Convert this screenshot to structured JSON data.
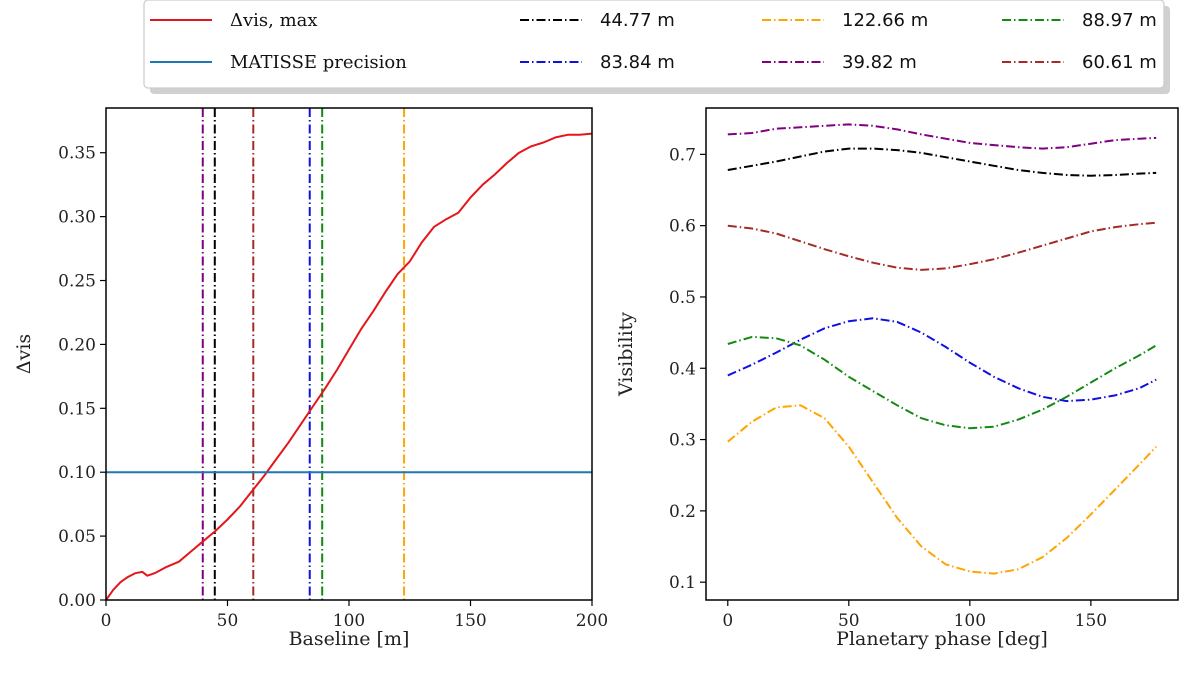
{
  "legend": {
    "entries": [
      {
        "key": "dvis_max",
        "label": "Δvis, max",
        "color": "#e3171b",
        "style": "solid"
      },
      {
        "key": "matisse",
        "label": "MATISSE precision",
        "color": "#1f77b4",
        "style": "solid"
      },
      {
        "key": "b4477",
        "label": "44.77 m",
        "color": "#000000",
        "style": "dashdot"
      },
      {
        "key": "b8384",
        "label": "83.84 m",
        "color": "#1010e0",
        "style": "dashdot"
      },
      {
        "key": "b12266",
        "label": "122.66 m",
        "color": "#ffa500",
        "style": "dashdot"
      },
      {
        "key": "b3982",
        "label": "39.82 m",
        "color": "#800080",
        "style": "dashdot"
      },
      {
        "key": "b8897",
        "label": "88.97 m",
        "color": "#138a13",
        "style": "dashdot"
      },
      {
        "key": "b6061",
        "label": "60.61 m",
        "color": "#a52a2a",
        "style": "dashdot"
      }
    ]
  },
  "chart_data": [
    {
      "type": "line",
      "id": "left",
      "xlabel": "Baseline [m]",
      "ylabel": "Δvis",
      "xlim": [
        0,
        200
      ],
      "ylim": [
        0,
        0.385
      ],
      "xticks": [
        0,
        50,
        100,
        150,
        200
      ],
      "yticks": [
        0,
        0.05,
        0.1,
        0.15,
        0.2,
        0.25,
        0.3,
        0.35
      ],
      "ytick_labels": [
        "0.00",
        "0.05",
        "0.10",
        "0.15",
        "0.20",
        "0.25",
        "0.30",
        "0.35"
      ],
      "series": [
        {
          "name": "Δvis, max",
          "color": "#e3171b",
          "x": [
            0,
            3,
            6,
            9,
            12,
            15,
            17,
            20,
            25,
            30,
            35,
            40,
            45,
            50,
            55,
            60,
            65,
            70,
            75,
            80,
            85,
            90,
            95,
            100,
            105,
            110,
            115,
            120,
            125,
            130,
            135,
            140,
            145,
            150,
            155,
            160,
            165,
            170,
            175,
            180,
            185,
            190,
            195,
            200
          ],
          "y": [
            0.0,
            0.008,
            0.014,
            0.018,
            0.021,
            0.022,
            0.019,
            0.021,
            0.026,
            0.03,
            0.038,
            0.046,
            0.054,
            0.063,
            0.073,
            0.085,
            0.097,
            0.11,
            0.123,
            0.137,
            0.151,
            0.165,
            0.18,
            0.196,
            0.212,
            0.226,
            0.241,
            0.255,
            0.265,
            0.28,
            0.292,
            0.298,
            0.303,
            0.315,
            0.325,
            0.333,
            0.342,
            0.35,
            0.355,
            0.358,
            0.362,
            0.364,
            0.364,
            0.365
          ]
        },
        {
          "name": "MATISSE precision",
          "color": "#1f77b4",
          "x": [
            0,
            200
          ],
          "y": [
            0.1,
            0.1
          ]
        }
      ],
      "vlines": [
        {
          "x": 39.82,
          "color": "#800080"
        },
        {
          "x": 44.77,
          "color": "#000000"
        },
        {
          "x": 60.61,
          "color": "#a52a2a"
        },
        {
          "x": 83.84,
          "color": "#1010e0"
        },
        {
          "x": 88.97,
          "color": "#138a13"
        },
        {
          "x": 122.66,
          "color": "#ffa500"
        }
      ]
    },
    {
      "type": "line",
      "id": "right",
      "xlabel": "Planetary phase [deg]",
      "ylabel": "Visibility",
      "xlim": [
        -9,
        186
      ],
      "ylim": [
        0.075,
        0.765
      ],
      "xticks": [
        0,
        50,
        100,
        150
      ],
      "yticks": [
        0.1,
        0.2,
        0.3,
        0.4,
        0.5,
        0.6,
        0.7
      ],
      "ytick_labels": [
        "0.1",
        "0.2",
        "0.3",
        "0.4",
        "0.5",
        "0.6",
        "0.7"
      ],
      "series": [
        {
          "name": "39.82 m",
          "color": "#800080",
          "x": [
            0,
            10,
            20,
            30,
            40,
            50,
            60,
            70,
            80,
            90,
            100,
            110,
            120,
            130,
            140,
            150,
            160,
            170,
            177
          ],
          "y": [
            0.728,
            0.73,
            0.736,
            0.738,
            0.74,
            0.742,
            0.74,
            0.735,
            0.728,
            0.722,
            0.716,
            0.713,
            0.71,
            0.708,
            0.71,
            0.715,
            0.72,
            0.722,
            0.723
          ]
        },
        {
          "name": "44.77 m",
          "color": "#000000",
          "x": [
            0,
            10,
            20,
            30,
            40,
            50,
            60,
            70,
            80,
            90,
            100,
            110,
            120,
            130,
            140,
            150,
            160,
            170,
            177
          ],
          "y": [
            0.678,
            0.684,
            0.69,
            0.697,
            0.704,
            0.708,
            0.708,
            0.706,
            0.702,
            0.696,
            0.69,
            0.684,
            0.678,
            0.674,
            0.671,
            0.67,
            0.671,
            0.673,
            0.674
          ]
        },
        {
          "name": "60.61 m",
          "color": "#a52a2a",
          "x": [
            0,
            10,
            20,
            30,
            40,
            50,
            60,
            70,
            80,
            90,
            100,
            110,
            120,
            130,
            140,
            150,
            160,
            170,
            177
          ],
          "y": [
            0.6,
            0.596,
            0.589,
            0.578,
            0.567,
            0.557,
            0.548,
            0.541,
            0.538,
            0.54,
            0.546,
            0.553,
            0.562,
            0.572,
            0.582,
            0.592,
            0.598,
            0.602,
            0.604
          ]
        },
        {
          "name": "83.84 m",
          "color": "#1010e0",
          "x": [
            0,
            10,
            20,
            30,
            40,
            50,
            60,
            70,
            80,
            90,
            100,
            110,
            120,
            130,
            140,
            150,
            160,
            170,
            177
          ],
          "y": [
            0.39,
            0.405,
            0.422,
            0.44,
            0.456,
            0.466,
            0.47,
            0.465,
            0.45,
            0.43,
            0.408,
            0.388,
            0.372,
            0.36,
            0.354,
            0.356,
            0.362,
            0.372,
            0.384
          ]
        },
        {
          "name": "88.97 m",
          "color": "#138a13",
          "x": [
            0,
            10,
            20,
            30,
            40,
            50,
            60,
            70,
            80,
            90,
            100,
            110,
            120,
            130,
            140,
            150,
            160,
            170,
            177
          ],
          "y": [
            0.434,
            0.444,
            0.442,
            0.432,
            0.412,
            0.388,
            0.368,
            0.348,
            0.33,
            0.32,
            0.316,
            0.318,
            0.328,
            0.342,
            0.36,
            0.38,
            0.4,
            0.418,
            0.432
          ]
        },
        {
          "name": "122.66 m",
          "color": "#ffa500",
          "x": [
            0,
            10,
            20,
            30,
            40,
            50,
            60,
            70,
            80,
            90,
            100,
            110,
            120,
            130,
            140,
            150,
            160,
            170,
            177
          ],
          "y": [
            0.297,
            0.325,
            0.345,
            0.348,
            0.33,
            0.29,
            0.24,
            0.19,
            0.15,
            0.125,
            0.115,
            0.112,
            0.118,
            0.135,
            0.162,
            0.195,
            0.23,
            0.265,
            0.29
          ]
        }
      ]
    }
  ]
}
